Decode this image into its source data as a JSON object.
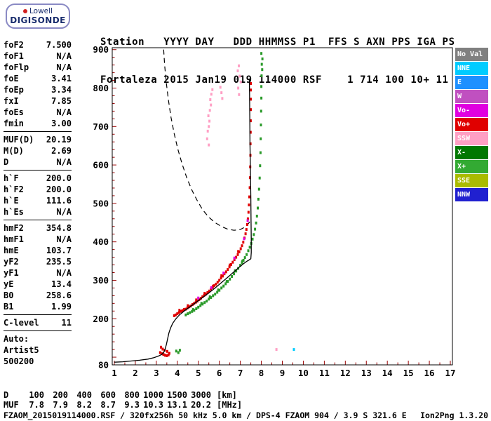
{
  "logo": {
    "line1": "Lowell",
    "line2": "DIGISONDE"
  },
  "header": {
    "line1": "Station   YYYY DAY   DDD HHMMSS P1  FFS S AXN PPS IGA PS",
    "line2": "Fortaleza 2015 Jan19 019 114000 RSF    1 714 100 10+ 11"
  },
  "params": {
    "groups": [
      {
        "rows": [
          [
            "foF2",
            "7.500"
          ],
          [
            "foF1",
            "N/A"
          ],
          [
            "foFlp",
            "N/A"
          ],
          [
            "foE",
            "3.41"
          ],
          [
            "foEp",
            "3.34"
          ],
          [
            "fxI",
            "7.85"
          ],
          [
            "foEs",
            "N/A"
          ],
          [
            "fmin",
            "3.00"
          ]
        ]
      },
      {
        "rows": [
          [
            "MUF(D)",
            "20.19"
          ],
          [
            "M(D)",
            "2.69"
          ],
          [
            "D",
            "N/A"
          ]
        ]
      },
      {
        "rows": [
          [
            "h`F",
            "200.0"
          ],
          [
            "h`F2",
            "200.0"
          ],
          [
            "h`E",
            "111.6"
          ],
          [
            "h`Es",
            "N/A"
          ]
        ]
      },
      {
        "rows": [
          [
            "hmF2",
            "354.8"
          ],
          [
            "hmF1",
            "N/A"
          ],
          [
            "hmE",
            "103.7"
          ],
          [
            "yF2",
            "235.5"
          ],
          [
            "yF1",
            "N/A"
          ],
          [
            "yE",
            "13.4"
          ],
          [
            "B0",
            "258.6"
          ],
          [
            "B1",
            "1.99"
          ]
        ]
      },
      {
        "rows": [
          [
            "C-level",
            "11"
          ]
        ]
      }
    ],
    "footer": [
      "Auto:",
      "Artist5",
      "500200"
    ]
  },
  "legend": {
    "items": [
      {
        "label": "No Val",
        "color": "#808080"
      },
      {
        "label": "NNE",
        "color": "#00ccff"
      },
      {
        "label": "E",
        "color": "#1e90ff"
      },
      {
        "label": "W",
        "color": "#c050c0"
      },
      {
        "label": "Vo-",
        "color": "#e000e0"
      },
      {
        "label": "Vo+",
        "color": "#e00000"
      },
      {
        "label": "SSW",
        "color": "#ff9fc4"
      },
      {
        "label": "X-",
        "color": "#007700"
      },
      {
        "label": "X+",
        "color": "#33aa33"
      },
      {
        "label": "SSE",
        "color": "#aabb00"
      },
      {
        "label": "NNW",
        "color": "#2020d0"
      }
    ]
  },
  "chart_data": {
    "type": "scatter",
    "title": "Fortaleza ionogram 2015 Jan19 019 114000 RSF",
    "xlabel": "MHz",
    "ylabel": "km",
    "xlim": [
      0.9,
      17.1
    ],
    "ylim": [
      80,
      905
    ],
    "x_ticks": [
      1,
      2,
      3,
      4,
      5,
      6,
      7,
      8,
      9,
      10,
      11,
      12,
      13,
      14,
      15,
      16,
      17
    ],
    "y_tick_labels": [
      900,
      800,
      700,
      600,
      500,
      400,
      300,
      200,
      80
    ],
    "grid": false,
    "tick_color": "#990000",
    "traces": [
      {
        "name": "O-mode F trace (Vo+)",
        "color": "#e00000",
        "points": [
          [
            3.85,
            208
          ],
          [
            3.92,
            210
          ],
          [
            4.0,
            213
          ],
          [
            4.08,
            216
          ],
          [
            4.16,
            219
          ],
          [
            4.24,
            221
          ],
          [
            4.32,
            224
          ],
          [
            4.4,
            225
          ],
          [
            4.48,
            228
          ],
          [
            4.56,
            231
          ],
          [
            4.64,
            233
          ],
          [
            4.72,
            237
          ],
          [
            4.8,
            240
          ],
          [
            4.88,
            243
          ],
          [
            4.96,
            246
          ],
          [
            5.04,
            250
          ],
          [
            5.12,
            253
          ],
          [
            5.2,
            257
          ],
          [
            5.28,
            261
          ],
          [
            5.36,
            264
          ],
          [
            5.44,
            268
          ],
          [
            5.52,
            272
          ],
          [
            5.6,
            277
          ],
          [
            5.68,
            281
          ],
          [
            5.76,
            286
          ],
          [
            5.84,
            290
          ],
          [
            5.92,
            295
          ],
          [
            6.0,
            300
          ],
          [
            6.08,
            306
          ],
          [
            6.16,
            311
          ],
          [
            6.24,
            317
          ],
          [
            6.32,
            322
          ],
          [
            6.4,
            328
          ],
          [
            6.48,
            335
          ],
          [
            6.56,
            341
          ],
          [
            6.64,
            347
          ],
          [
            6.72,
            354
          ],
          [
            6.8,
            360
          ],
          [
            6.88,
            367
          ],
          [
            6.95,
            374
          ],
          [
            7.02,
            382
          ],
          [
            7.08,
            390
          ],
          [
            7.14,
            399
          ],
          [
            7.2,
            410
          ],
          [
            7.25,
            421
          ],
          [
            7.29,
            432
          ],
          [
            7.33,
            445
          ],
          [
            7.36,
            460
          ],
          [
            7.39,
            477
          ],
          [
            7.41,
            496
          ],
          [
            7.43,
            517
          ],
          [
            7.45,
            541
          ],
          [
            7.46,
            567
          ],
          [
            7.47,
            595
          ],
          [
            7.48,
            625
          ],
          [
            7.485,
            655
          ],
          [
            7.49,
            685
          ],
          [
            7.495,
            715
          ],
          [
            7.5,
            744
          ],
          [
            7.5,
            771
          ],
          [
            7.5,
            795
          ],
          [
            7.5,
            812
          ],
          [
            4.1,
            222
          ],
          [
            4.5,
            234
          ],
          [
            4.9,
            249
          ],
          [
            5.3,
            266
          ],
          [
            5.7,
            285
          ],
          [
            6.1,
            312
          ],
          [
            6.5,
            340
          ],
          [
            6.9,
            375
          ]
        ]
      },
      {
        "name": "O-mode E-region echoes",
        "color": "#e00000",
        "points": [
          [
            3.18,
            112
          ],
          [
            3.26,
            109
          ],
          [
            3.34,
            107
          ],
          [
            3.42,
            105
          ],
          [
            3.5,
            104
          ],
          [
            3.58,
            106
          ],
          [
            3.3,
            121
          ],
          [
            3.4,
            118
          ],
          [
            3.22,
            126
          ],
          [
            3.52,
            115
          ],
          [
            3.62,
            110
          ]
        ]
      },
      {
        "name": "X-mode F trace (X+)",
        "color": "#2a9a2a",
        "points": [
          [
            4.4,
            210
          ],
          [
            4.5,
            213
          ],
          [
            4.6,
            216
          ],
          [
            4.7,
            219
          ],
          [
            4.8,
            222
          ],
          [
            4.9,
            226
          ],
          [
            5.0,
            230
          ],
          [
            5.1,
            234
          ],
          [
            5.2,
            238
          ],
          [
            5.3,
            242
          ],
          [
            5.4,
            246
          ],
          [
            5.5,
            251
          ],
          [
            5.6,
            255
          ],
          [
            5.7,
            260
          ],
          [
            5.8,
            264
          ],
          [
            5.9,
            269
          ],
          [
            6.0,
            274
          ],
          [
            6.1,
            280
          ],
          [
            6.2,
            285
          ],
          [
            6.3,
            291
          ],
          [
            6.4,
            297
          ],
          [
            6.5,
            303
          ],
          [
            6.6,
            310
          ],
          [
            6.7,
            317
          ],
          [
            6.8,
            324
          ],
          [
            6.9,
            331
          ],
          [
            7.0,
            339
          ],
          [
            7.08,
            346
          ],
          [
            7.15,
            352
          ],
          [
            7.22,
            359
          ],
          [
            7.3,
            367
          ],
          [
            7.38,
            377
          ],
          [
            7.45,
            386
          ],
          [
            7.52,
            396
          ],
          [
            7.58,
            407
          ],
          [
            7.64,
            419
          ],
          [
            7.7,
            433
          ],
          [
            7.75,
            449
          ],
          [
            7.79,
            467
          ],
          [
            7.83,
            488
          ],
          [
            7.86,
            511
          ],
          [
            7.89,
            537
          ],
          [
            7.92,
            566
          ],
          [
            7.94,
            598
          ],
          [
            7.96,
            632
          ],
          [
            7.97,
            668
          ],
          [
            7.98,
            704
          ],
          [
            7.99,
            740
          ],
          [
            8.0,
            774
          ],
          [
            8.0,
            804
          ],
          [
            8.01,
            832
          ],
          [
            4.75,
            224
          ],
          [
            5.15,
            240
          ],
          [
            5.55,
            257
          ],
          [
            5.95,
            275
          ],
          [
            6.35,
            297
          ],
          [
            6.75,
            325
          ],
          [
            7.1,
            350
          ]
        ]
      },
      {
        "name": "X-mode topside echoes",
        "color": "#2a9a2a",
        "points": [
          [
            8.02,
            862
          ],
          [
            8.05,
            876
          ],
          [
            8.0,
            890
          ],
          [
            8.04,
            848
          ]
        ]
      },
      {
        "name": "X-mode E-region echoes",
        "color": "#2a9a2a",
        "points": [
          [
            3.95,
            116
          ],
          [
            4.05,
            112
          ],
          [
            4.12,
            118
          ]
        ]
      },
      {
        "name": "oblique spread-F echoes (SSW)",
        "color": "#ff9fc4",
        "points": [
          [
            5.45,
            688
          ],
          [
            5.5,
            700
          ],
          [
            5.53,
            714
          ],
          [
            5.48,
            728
          ],
          [
            5.55,
            742
          ],
          [
            5.6,
            756
          ],
          [
            5.57,
            770
          ],
          [
            5.62,
            784
          ],
          [
            5.67,
            796
          ],
          [
            6.05,
            802
          ],
          [
            6.1,
            788
          ],
          [
            6.14,
            773
          ],
          [
            5.42,
            668
          ],
          [
            5.5,
            652
          ],
          [
            6.88,
            845
          ],
          [
            6.93,
            858
          ],
          [
            6.97,
            831
          ],
          [
            7.02,
            816
          ],
          [
            6.9,
            800
          ],
          [
            6.94,
            783
          ],
          [
            8.72,
            120
          ]
        ]
      },
      {
        "name": "doppler-shifted points (Vo-)",
        "color": "#e000e0",
        "points": [
          [
            5.0,
            254
          ],
          [
            5.62,
            281
          ],
          [
            6.2,
            319
          ],
          [
            6.72,
            358
          ],
          [
            7.18,
            408
          ],
          [
            7.35,
            455
          ]
        ]
      },
      {
        "name": "sporadic echo (NNE)",
        "color": "#00ccff",
        "points": [
          [
            9.55,
            120
          ]
        ]
      }
    ],
    "lines": [
      {
        "name": "true-height electron density profile",
        "style": "solid",
        "color": "#000000",
        "points": [
          [
            1.0,
            87
          ],
          [
            1.4,
            88
          ],
          [
            1.8,
            90
          ],
          [
            2.2,
            92
          ],
          [
            2.6,
            95
          ],
          [
            2.9,
            99
          ],
          [
            3.1,
            103
          ],
          [
            3.25,
            107
          ],
          [
            3.35,
            112
          ],
          [
            3.42,
            121
          ],
          [
            3.48,
            133
          ],
          [
            3.54,
            148
          ],
          [
            3.6,
            163
          ],
          [
            3.68,
            176
          ],
          [
            3.78,
            188
          ],
          [
            3.92,
            199
          ],
          [
            4.1,
            210
          ],
          [
            4.35,
            221
          ],
          [
            4.6,
            231
          ],
          [
            4.9,
            243
          ],
          [
            5.2,
            255
          ],
          [
            5.5,
            267
          ],
          [
            5.8,
            280
          ],
          [
            6.1,
            294
          ],
          [
            6.4,
            308
          ],
          [
            6.7,
            322
          ],
          [
            6.95,
            334
          ],
          [
            7.15,
            343
          ],
          [
            7.3,
            349
          ],
          [
            7.42,
            353
          ],
          [
            7.5,
            356
          ],
          [
            7.52,
            372
          ],
          [
            7.52,
            405
          ],
          [
            7.51,
            455
          ],
          [
            7.5,
            515
          ],
          [
            7.48,
            585
          ],
          [
            7.46,
            655
          ],
          [
            7.45,
            725
          ],
          [
            7.44,
            785
          ],
          [
            7.43,
            822
          ]
        ]
      },
      {
        "name": "MUF transmission curve",
        "style": "dashed",
        "color": "#000000",
        "points": [
          [
            3.35,
            900
          ],
          [
            3.4,
            858
          ],
          [
            3.48,
            812
          ],
          [
            3.58,
            768
          ],
          [
            3.7,
            724
          ],
          [
            3.85,
            682
          ],
          [
            4.02,
            642
          ],
          [
            4.22,
            604
          ],
          [
            4.44,
            568
          ],
          [
            4.68,
            536
          ],
          [
            4.94,
            508
          ],
          [
            5.2,
            484
          ],
          [
            5.5,
            464
          ],
          [
            5.8,
            450
          ],
          [
            6.1,
            440
          ],
          [
            6.4,
            433
          ],
          [
            6.7,
            430
          ],
          [
            7.0,
            432
          ],
          [
            7.2,
            438
          ],
          [
            7.38,
            447
          ],
          [
            7.5,
            456
          ]
        ]
      }
    ]
  },
  "bottom_table": {
    "rows": [
      {
        "label": "D",
        "cells": [
          "100",
          "200",
          "400",
          "600",
          "800",
          "1000",
          "1500",
          "3000"
        ],
        "unit": "[km]"
      },
      {
        "label": "MUF",
        "cells": [
          "7.8",
          "7.9",
          "8.2",
          "8.7",
          "9.3",
          "10.3",
          "13.1",
          "20.2"
        ],
        "unit": "[MHz]"
      }
    ]
  },
  "status": {
    "left": "FZAOM_2015019114000.RSF / 320fx256h 50 kHz 5.0 km / DPS-4 FZAOM 904 / 3.9 S 321.6 E",
    "right": "Ion2Png 1.3.20"
  }
}
